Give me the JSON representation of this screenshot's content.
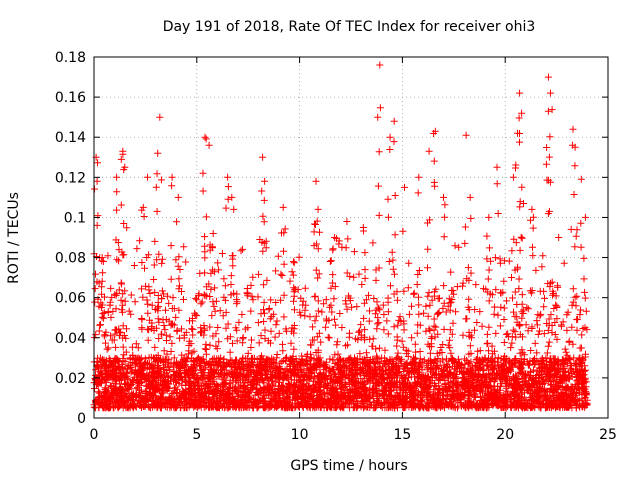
{
  "chart_data": {
    "type": "scatter",
    "title": "Day 191 of 2018, Rate Of TEC Index for receiver ohi3",
    "xlabel": "GPS time / hours",
    "ylabel": "ROTI / TECUs",
    "xlim": [
      0,
      25
    ],
    "ylim": [
      0,
      0.18
    ],
    "x_ticks": [
      0,
      5,
      10,
      15,
      20,
      25
    ],
    "y_ticks": [
      0,
      0.02,
      0.04,
      0.06,
      0.08,
      0.1,
      0.12,
      0.14,
      0.16,
      0.18
    ],
    "x_tick_labels": [
      "0",
      "5",
      "10",
      "15",
      "20",
      "25"
    ],
    "y_tick_labels": [
      "0",
      "0.02",
      "0.04",
      "0.06",
      "0.08",
      "0.1",
      "0.12",
      "0.14",
      "0.16",
      "0.18"
    ],
    "grid": true,
    "marker": "+",
    "series_color": "#ff0000",
    "x_range_data": [
      0,
      24
    ],
    "baseline_band": [
      0.005,
      0.03
    ],
    "peaks": [
      {
        "x": 0.1,
        "y": 0.13
      },
      {
        "x": 0.15,
        "y": 0.118
      },
      {
        "x": 0.4,
        "y": 0.08
      },
      {
        "x": 1.1,
        "y": 0.12
      },
      {
        "x": 1.4,
        "y": 0.133
      },
      {
        "x": 1.5,
        "y": 0.125
      },
      {
        "x": 2.4,
        "y": 0.105
      },
      {
        "x": 2.6,
        "y": 0.12
      },
      {
        "x": 3.2,
        "y": 0.15
      },
      {
        "x": 3.1,
        "y": 0.132
      },
      {
        "x": 3.8,
        "y": 0.12
      },
      {
        "x": 4.1,
        "y": 0.11
      },
      {
        "x": 5.4,
        "y": 0.14
      },
      {
        "x": 5.6,
        "y": 0.136
      },
      {
        "x": 5.3,
        "y": 0.122
      },
      {
        "x": 5.8,
        "y": 0.092
      },
      {
        "x": 6.5,
        "y": 0.12
      },
      {
        "x": 6.7,
        "y": 0.11
      },
      {
        "x": 8.2,
        "y": 0.13
      },
      {
        "x": 8.3,
        "y": 0.118
      },
      {
        "x": 9.2,
        "y": 0.105
      },
      {
        "x": 9.7,
        "y": 0.078
      },
      {
        "x": 10.8,
        "y": 0.118
      },
      {
        "x": 10.9,
        "y": 0.104
      },
      {
        "x": 11.7,
        "y": 0.09
      },
      {
        "x": 12.3,
        "y": 0.098
      },
      {
        "x": 13.1,
        "y": 0.095
      },
      {
        "x": 13.8,
        "y": 0.15
      },
      {
        "x": 13.9,
        "y": 0.176
      },
      {
        "x": 14.6,
        "y": 0.148
      },
      {
        "x": 14.4,
        "y": 0.14
      },
      {
        "x": 15.1,
        "y": 0.115
      },
      {
        "x": 15.8,
        "y": 0.12
      },
      {
        "x": 16.3,
        "y": 0.133
      },
      {
        "x": 16.6,
        "y": 0.143
      },
      {
        "x": 17.0,
        "y": 0.11
      },
      {
        "x": 18.1,
        "y": 0.141
      },
      {
        "x": 18.3,
        "y": 0.11
      },
      {
        "x": 19.2,
        "y": 0.1
      },
      {
        "x": 19.6,
        "y": 0.125
      },
      {
        "x": 20.4,
        "y": 0.12
      },
      {
        "x": 20.7,
        "y": 0.162
      },
      {
        "x": 20.8,
        "y": 0.152
      },
      {
        "x": 20.6,
        "y": 0.142
      },
      {
        "x": 21.3,
        "y": 0.104
      },
      {
        "x": 22.1,
        "y": 0.17
      },
      {
        "x": 22.2,
        "y": 0.162
      },
      {
        "x": 22.1,
        "y": 0.153
      },
      {
        "x": 22.6,
        "y": 0.09
      },
      {
        "x": 23.3,
        "y": 0.144
      },
      {
        "x": 23.4,
        "y": 0.135
      },
      {
        "x": 23.7,
        "y": 0.119
      },
      {
        "x": 23.9,
        "y": 0.1
      }
    ]
  }
}
